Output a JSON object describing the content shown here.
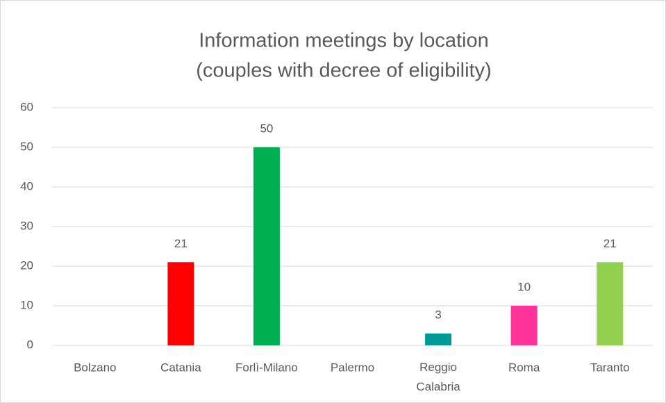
{
  "chart_data": {
    "type": "bar",
    "title": [
      "Information meetings by location",
      "(couples with decree of eligibility)"
    ],
    "categories": [
      "Bolzano",
      "Catania",
      "Forlì-Milano",
      "Palermo",
      "Reggio Calabria",
      "Roma",
      "Taranto"
    ],
    "values": [
      null,
      21,
      50,
      null,
      3,
      10,
      21
    ],
    "colors": [
      null,
      "#ff0000",
      "#00b050",
      null,
      "#009999",
      "#ff3399",
      "#92d050"
    ],
    "ylim": [
      0,
      60
    ],
    "yticks": [
      0,
      10,
      20,
      30,
      40,
      50,
      60
    ],
    "grid": true
  }
}
